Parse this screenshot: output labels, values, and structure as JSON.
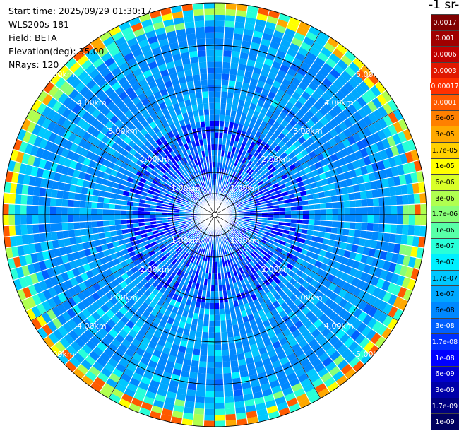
{
  "info": {
    "start_time": "Start time: 2025/09/29 01:30:17",
    "device": "WLS200s-181",
    "field": "Field: BETA",
    "elevation": "Elevation(deg): 35.00",
    "nrays": "NRays: 120"
  },
  "colorbar_title": "-1 sr-",
  "colorbar": [
    {
      "label": "0.0017",
      "color": "#800000",
      "text": "#ffffff"
    },
    {
      "label": "0.001",
      "color": "#a00000",
      "text": "#ffffff"
    },
    {
      "label": "0.0006",
      "color": "#c00000",
      "text": "#ffffff"
    },
    {
      "label": "0.0003",
      "color": "#e01800",
      "text": "#ffffff"
    },
    {
      "label": "0.00017",
      "color": "#ff3000",
      "text": "#ffffff"
    },
    {
      "label": "0.0001",
      "color": "#ff5a00",
      "text": "#ffffff"
    },
    {
      "label": "6e-05",
      "color": "#ff8000",
      "text": "#000000"
    },
    {
      "label": "3e-05",
      "color": "#ffa800",
      "text": "#000000"
    },
    {
      "label": "1.7e-05",
      "color": "#ffd000",
      "text": "#000000"
    },
    {
      "label": "1e-05",
      "color": "#ffff00",
      "text": "#000000"
    },
    {
      "label": "6e-06",
      "color": "#d8ff28",
      "text": "#000000"
    },
    {
      "label": "3e-06",
      "color": "#b0ff50",
      "text": "#000000"
    },
    {
      "label": "1.7e-06",
      "color": "#88ff78",
      "text": "#000000"
    },
    {
      "label": "1e-06",
      "color": "#58ffa8",
      "text": "#000000"
    },
    {
      "label": "6e-07",
      "color": "#28ffd8",
      "text": "#000000"
    },
    {
      "label": "3e-07",
      "color": "#00f0ff",
      "text": "#000000"
    },
    {
      "label": "1.7e-07",
      "color": "#00c8ff",
      "text": "#000000"
    },
    {
      "label": "1e-07",
      "color": "#00a8ff",
      "text": "#000000"
    },
    {
      "label": "6e-08",
      "color": "#0088ff",
      "text": "#000000"
    },
    {
      "label": "3e-08",
      "color": "#0060ff",
      "text": "#ffffff"
    },
    {
      "label": "1.7e-08",
      "color": "#0030ff",
      "text": "#ffffff"
    },
    {
      "label": "1e-08",
      "color": "#0000ff",
      "text": "#ffffff"
    },
    {
      "label": "6e-09",
      "color": "#0000d0",
      "text": "#ffffff"
    },
    {
      "label": "3e-09",
      "color": "#0000a8",
      "text": "#ffffff"
    },
    {
      "label": "1.7e-09",
      "color": "#000080",
      "text": "#ffffff"
    },
    {
      "label": "1e-09",
      "color": "#000060",
      "text": "#ffffff"
    }
  ],
  "range_labels": [
    "1.00km",
    "2.00km",
    "3.00km",
    "4.00km",
    "5.00km"
  ],
  "range_km": [
    1,
    2,
    3,
    4,
    5
  ],
  "max_range_km": 5
}
